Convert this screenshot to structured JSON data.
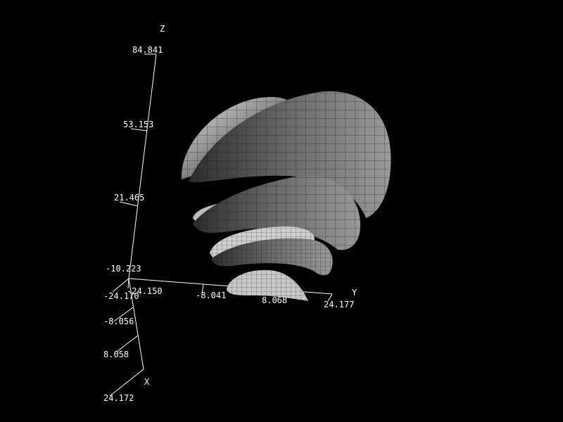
{
  "scene": {
    "background_color": "#000000",
    "foreground_color": "#ffffff",
    "axes": {
      "z": {
        "name": "Z",
        "ticks": [
          "84.841",
          "53.153",
          "21.465",
          "-10.223"
        ]
      },
      "y": {
        "name": "Y",
        "ticks": [
          "-24.150",
          "-8.041",
          "8.068",
          "24.177"
        ]
      },
      "x": {
        "name": "X",
        "ticks": [
          "-24.170",
          "-8.056",
          "8.058",
          "24.172"
        ]
      }
    },
    "surface": {
      "description_shape": "stacked-lobed-shells",
      "shells": 4,
      "shading": "gray-shaded-mesh"
    }
  }
}
